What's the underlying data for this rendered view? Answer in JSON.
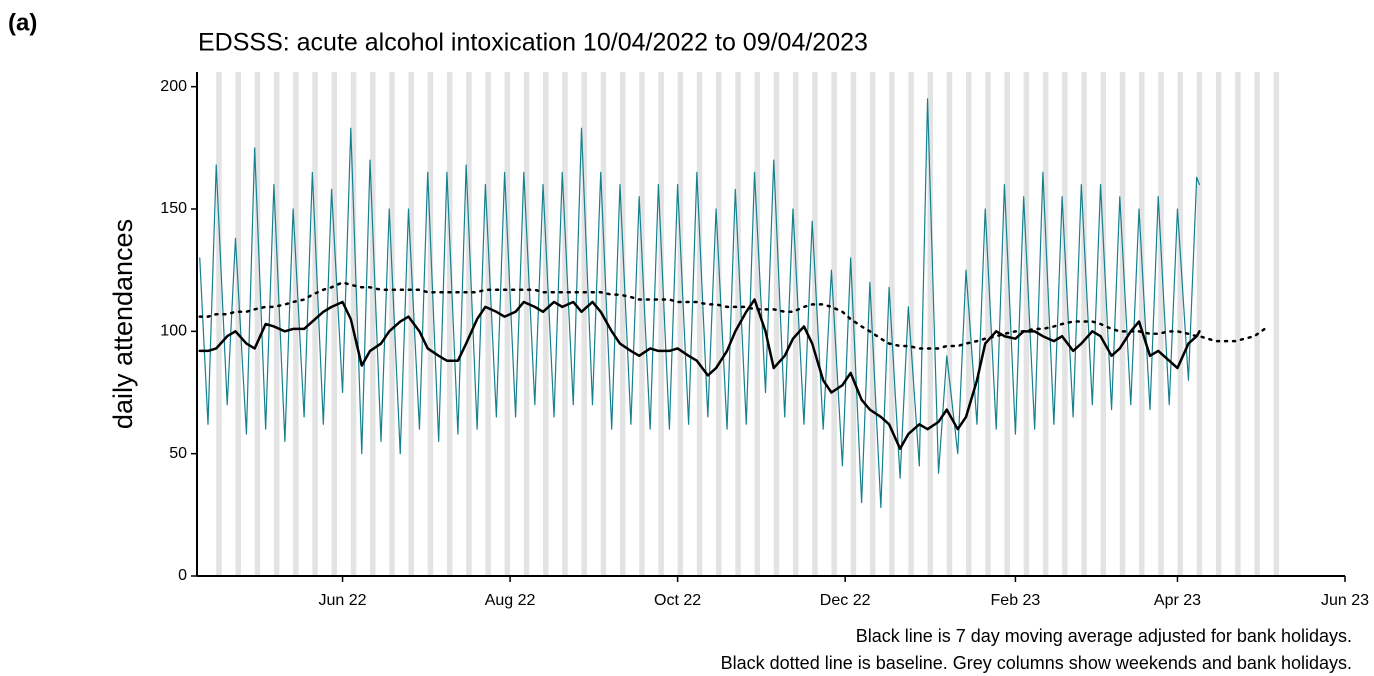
{
  "chart_data": {
    "type": "line",
    "panel_label": "(a)",
    "title": "EDSSS: acute alcohol intoxication 10/04/2022 to 09/04/2023",
    "ylabel": "daily attendances",
    "notes": [
      "Black line is 7 day moving average adjusted for bank holidays.",
      "Black dotted line is baseline. Grey columns show weekends and bank holidays."
    ],
    "x": [
      0,
      3,
      6,
      10,
      13,
      17,
      20,
      24,
      27,
      31,
      34,
      38,
      41,
      45,
      48,
      52,
      55,
      59,
      62,
      66,
      69,
      73,
      76,
      80,
      83,
      87,
      90,
      94,
      97,
      101,
      104,
      108,
      111,
      115,
      118,
      122,
      125,
      129,
      132,
      136,
      139,
      143,
      146,
      150,
      153,
      157,
      160,
      164,
      167,
      171,
      174,
      178,
      181,
      185,
      188,
      192,
      195,
      199,
      202,
      206,
      209,
      213,
      216,
      220,
      223,
      227,
      230,
      234,
      237,
      241,
      244,
      248,
      251,
      255,
      258,
      262,
      265,
      269,
      272,
      276,
      279,
      283,
      286,
      290,
      293,
      297,
      300,
      304,
      307,
      311,
      314,
      318,
      321,
      325,
      328,
      332,
      335,
      339,
      342,
      346,
      349,
      353,
      356,
      360,
      363,
      364,
      370,
      377,
      384,
      389
    ],
    "series": [
      {
        "color": "#17808f",
        "width": 1.2,
        "dash": "solid",
        "values": [
          130,
          62,
          168,
          70,
          138,
          58,
          175,
          60,
          160,
          55,
          150,
          65,
          165,
          62,
          158,
          75,
          183,
          50,
          170,
          55,
          150,
          50,
          150,
          60,
          165,
          55,
          165,
          58,
          168,
          60,
          160,
          65,
          165,
          65,
          165,
          70,
          160,
          65,
          165,
          70,
          183,
          70,
          165,
          60,
          160,
          62,
          155,
          60,
          160,
          60,
          160,
          62,
          165,
          65,
          150,
          60,
          158,
          62,
          165,
          75,
          170,
          65,
          150,
          62,
          145,
          60,
          125,
          45,
          130,
          30,
          120,
          28,
          118,
          40,
          110,
          45,
          195,
          42,
          90,
          50,
          125,
          62,
          150,
          60,
          160,
          58,
          155,
          60,
          165,
          62,
          155,
          65,
          160,
          70,
          160,
          68,
          155,
          70,
          150,
          68,
          155,
          70,
          150,
          80,
          163,
          160,
          null,
          null,
          null,
          null
        ]
      },
      {
        "color": "#000000",
        "width": 2.5,
        "dash": "solid",
        "values": [
          92,
          92,
          93,
          98,
          100,
          95,
          93,
          103,
          102,
          100,
          101,
          101,
          104,
          108,
          110,
          112,
          105,
          86,
          92,
          95,
          100,
          104,
          106,
          100,
          93,
          90,
          88,
          88,
          95,
          105,
          110,
          108,
          106,
          108,
          112,
          110,
          108,
          112,
          110,
          112,
          108,
          112,
          108,
          100,
          95,
          92,
          90,
          93,
          92,
          92,
          93,
          90,
          88,
          82,
          85,
          92,
          100,
          108,
          113,
          100,
          85,
          90,
          97,
          102,
          95,
          80,
          75,
          78,
          83,
          72,
          68,
          65,
          62,
          52,
          58,
          62,
          60,
          63,
          68,
          60,
          65,
          80,
          95,
          100,
          98,
          97,
          100,
          100,
          98,
          96,
          98,
          92,
          95,
          100,
          98,
          90,
          93,
          100,
          104,
          90,
          92,
          88,
          85,
          95,
          98,
          100,
          null,
          null,
          null,
          null
        ]
      },
      {
        "color": "#000000",
        "width": 2.5,
        "dash": "dotted",
        "values": [
          106,
          106,
          107,
          107,
          108,
          108,
          109,
          110,
          110,
          111,
          112,
          113,
          115,
          117,
          118,
          120,
          119,
          118,
          118,
          117,
          117,
          117,
          117,
          117,
          116,
          116,
          116,
          116,
          116,
          116,
          117,
          117,
          117,
          117,
          117,
          117,
          116,
          116,
          116,
          116,
          116,
          116,
          116,
          115,
          115,
          114,
          113,
          113,
          113,
          113,
          112,
          112,
          112,
          111,
          111,
          110,
          110,
          110,
          109,
          109,
          109,
          108,
          108,
          110,
          111,
          111,
          110,
          108,
          105,
          102,
          100,
          97,
          95,
          94,
          94,
          93,
          93,
          93,
          94,
          94,
          95,
          96,
          97,
          98,
          99,
          100,
          100,
          101,
          101,
          102,
          103,
          104,
          104,
          104,
          103,
          101,
          100,
          100,
          100,
          99,
          99,
          100,
          100,
          99,
          98,
          98,
          96,
          96,
          98,
          102
        ]
      }
    ],
    "shaded_x": [
      6,
      13,
      20,
      27,
      34,
      41,
      48,
      55,
      62,
      69,
      76,
      83,
      90,
      97,
      104,
      111,
      118,
      125,
      132,
      139,
      146,
      153,
      160,
      167,
      174,
      181,
      188,
      195,
      202,
      209,
      216,
      223,
      230,
      237,
      244,
      251,
      258,
      265,
      272,
      279,
      286,
      293,
      300,
      307,
      314,
      321,
      328,
      335,
      342,
      349,
      356,
      363,
      370,
      377,
      384,
      391
    ],
    "shade_color": "#e3e3e3",
    "xlim": [
      -1,
      417
    ],
    "xticks": [
      {
        "value": 52,
        "label": "Jun 22"
      },
      {
        "value": 113,
        "label": "Aug 22"
      },
      {
        "value": 174,
        "label": "Oct 22"
      },
      {
        "value": 235,
        "label": "Dec 22"
      },
      {
        "value": 297,
        "label": "Feb 23"
      },
      {
        "value": 356,
        "label": "Apr 23"
      },
      {
        "value": 417,
        "label": "Jun 23"
      }
    ],
    "ylim": [
      0,
      206
    ],
    "yticks": [
      0,
      50,
      100,
      150,
      200
    ]
  }
}
